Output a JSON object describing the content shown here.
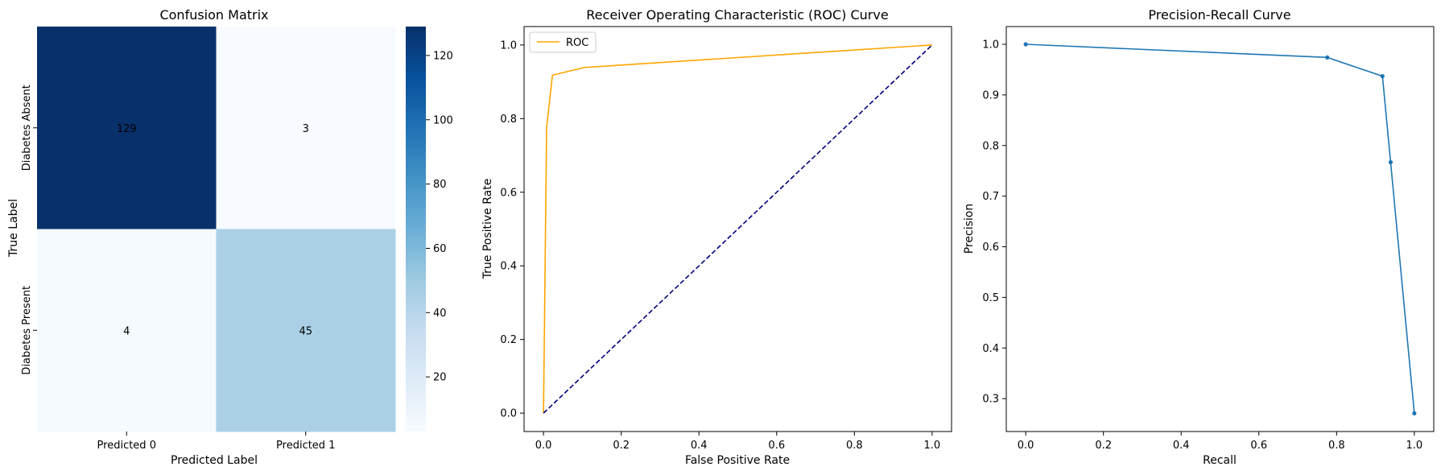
{
  "chart_data": [
    {
      "type": "heatmap",
      "title": "Confusion Matrix",
      "xlabel": "Predicted Label",
      "ylabel": "True Label",
      "x_categories": [
        "Predicted 0",
        "Predicted 1"
      ],
      "y_categories": [
        "Diabetes Absent",
        "Diabetes Present"
      ],
      "values": [
        [
          129,
          3
        ],
        [
          4,
          45
        ]
      ],
      "colormap": "Blues",
      "colorbar": {
        "range": [
          3,
          129
        ],
        "ticks": [
          20,
          40,
          60,
          80,
          100,
          120
        ]
      }
    },
    {
      "type": "line",
      "title": "Receiver Operating Characteristic (ROC) Curve",
      "xlabel": "False Positive Rate",
      "ylabel": "True Positive Rate",
      "xlim": [
        -0.05,
        1.05
      ],
      "ylim": [
        -0.05,
        1.05
      ],
      "xticks": [
        0.0,
        0.2,
        0.4,
        0.6,
        0.8,
        1.0
      ],
      "yticks": [
        0.0,
        0.2,
        0.4,
        0.6,
        0.8,
        1.0
      ],
      "legend_position": "top-left",
      "series": [
        {
          "name": "ROC",
          "color": "#ffa500",
          "style": "solid",
          "x": [
            0.0,
            0.008,
            0.023,
            0.106,
            1.0
          ],
          "y": [
            0.0,
            0.776,
            0.918,
            0.939,
            1.0
          ]
        },
        {
          "color": "#000080",
          "style": "dashed",
          "x": [
            0.0,
            1.0
          ],
          "y": [
            0.0,
            1.0
          ]
        }
      ]
    },
    {
      "type": "line",
      "title": "Precision-Recall Curve",
      "xlabel": "Recall",
      "ylabel": "Precision",
      "xlim": [
        -0.05,
        1.05
      ],
      "ylim": [
        0.235,
        1.035
      ],
      "xticks": [
        0.0,
        0.2,
        0.4,
        0.6,
        0.8,
        1.0
      ],
      "yticks": [
        0.3,
        0.4,
        0.5,
        0.6,
        0.7,
        0.8,
        0.9,
        1.0
      ],
      "series": [
        {
          "color": "#1f77b4",
          "markers": true,
          "x": [
            0.0,
            0.776,
            0.918,
            0.939,
            1.0
          ],
          "y": [
            1.0,
            0.974,
            0.937,
            0.767,
            0.271
          ]
        }
      ]
    }
  ]
}
